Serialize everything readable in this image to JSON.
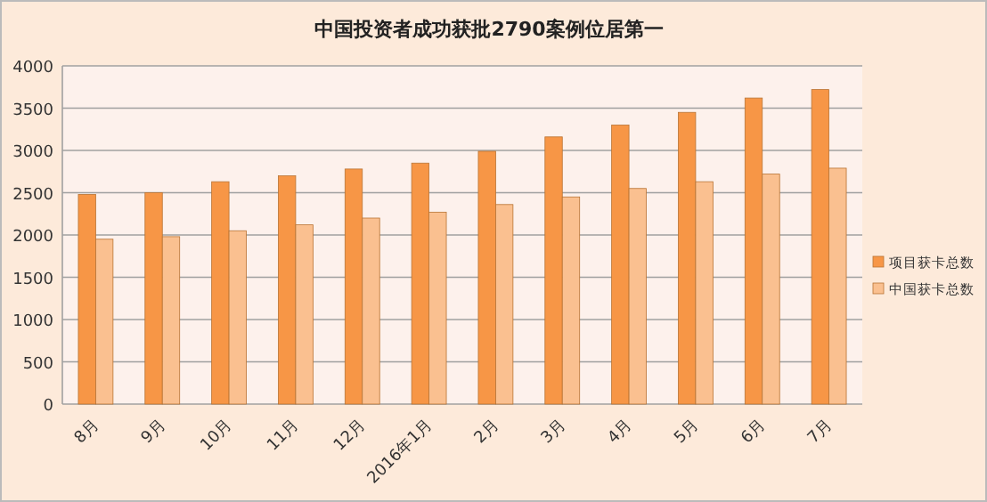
{
  "chart_data": {
    "type": "bar",
    "title": "中国投资者成功获批2790案例位居第一",
    "categories": [
      "8月",
      "9月",
      "10月",
      "11月",
      "12月",
      "2016年1月",
      "2月",
      "3月",
      "4月",
      "5月",
      "6月",
      "7月"
    ],
    "series": [
      {
        "name": "项目获卡总数",
        "color": "#f79646",
        "values": [
          2480,
          2500,
          2630,
          2700,
          2780,
          2850,
          2990,
          3160,
          3300,
          3450,
          3620,
          3720
        ]
      },
      {
        "name": "中国获卡总数",
        "color": "#fac090",
        "values": [
          1950,
          1980,
          2050,
          2120,
          2200,
          2270,
          2360,
          2450,
          2550,
          2630,
          2720,
          2790
        ]
      }
    ],
    "ylim": [
      0,
      4000
    ],
    "yticks": [
      0,
      500,
      1000,
      1500,
      2000,
      2500,
      3000,
      3500,
      4000
    ],
    "grid": "y",
    "legend": "right"
  }
}
